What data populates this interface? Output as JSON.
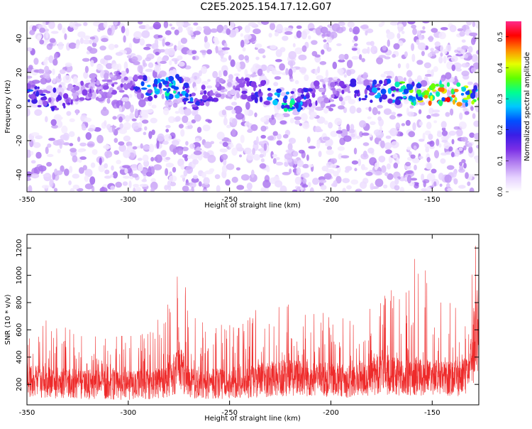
{
  "title": "C2E5.2025.154.17.12.G07",
  "colors": {
    "snr_line": "#ee2a2a",
    "colormap": [
      "#ffffff",
      "#e6d2ff",
      "#b482f0",
      "#7a2ee6",
      "#3a1ee6",
      "#0050ff",
      "#00c8ff",
      "#00ff90",
      "#60ff00",
      "#e6ff00",
      "#ff8800",
      "#ff0000",
      "#ff2a8a"
    ]
  },
  "chart_data": [
    {
      "type": "heatmap",
      "xlabel": "Height of straight line (km)",
      "ylabel": "Frequency (Hz)",
      "xlim": [
        -350,
        -127
      ],
      "ylim": [
        -50,
        50
      ],
      "xticks": [
        -350,
        -300,
        -250,
        -200,
        -150
      ],
      "yticks": [
        -40,
        -20,
        0,
        20,
        40
      ],
      "colorbar": {
        "label": "Normalized spectral amplitude",
        "range": [
          0.0,
          0.55
        ],
        "ticks": [
          0.0,
          0.1,
          0.2,
          0.3,
          0.4,
          0.5
        ],
        "tick_labels": [
          "0.0",
          "0.1",
          "0.2",
          "0.3",
          "0.4",
          "0.5"
        ]
      },
      "ridge": {
        "description_points": [
          {
            "x": -348,
            "freq": 8,
            "amp": 0.22
          },
          {
            "x": -340,
            "freq": 3,
            "amp": 0.18
          },
          {
            "x": -325,
            "freq": 7,
            "amp": 0.12
          },
          {
            "x": -300,
            "freq": 16,
            "amp": 0.12
          },
          {
            "x": -290,
            "freq": 10,
            "amp": 0.28
          },
          {
            "x": -276,
            "freq": 12,
            "amp": 0.3
          },
          {
            "x": -268,
            "freq": 4,
            "amp": 0.22
          },
          {
            "x": -250,
            "freq": 12,
            "amp": 0.08
          },
          {
            "x": -232,
            "freq": 8,
            "amp": 0.22
          },
          {
            "x": -220,
            "freq": 2,
            "amp": 0.32
          },
          {
            "x": -205,
            "freq": 9,
            "amp": 0.1
          },
          {
            "x": -185,
            "freq": 9,
            "amp": 0.2
          },
          {
            "x": -170,
            "freq": 9,
            "amp": 0.3
          },
          {
            "x": -158,
            "freq": 7,
            "amp": 0.38
          },
          {
            "x": -145,
            "freq": 8,
            "amp": 0.5
          },
          {
            "x": -132,
            "freq": 7,
            "amp": 0.38
          }
        ]
      }
    },
    {
      "type": "line",
      "xlabel": "Height of straight line (km)",
      "ylabel": "SNR (10 * v/v)",
      "xlim": [
        -350,
        -127
      ],
      "ylim": [
        50,
        1300
      ],
      "xticks": [
        -350,
        -300,
        -250,
        -200,
        -150
      ],
      "yticks": [
        200,
        400,
        600,
        800,
        1000,
        1200
      ],
      "envelope": {
        "x": [
          -350,
          -340,
          -330,
          -320,
          -310,
          -300,
          -290,
          -280,
          -276,
          -274,
          -272,
          -270,
          -260,
          -250,
          -240,
          -230,
          -220,
          -210,
          -200,
          -190,
          -180,
          -176,
          -170,
          -160,
          -158,
          -150,
          -140,
          -132,
          -129,
          -127
        ],
        "base": [
          230,
          220,
          210,
          200,
          200,
          190,
          200,
          230,
          300,
          320,
          250,
          210,
          200,
          210,
          220,
          240,
          250,
          240,
          230,
          220,
          240,
          300,
          260,
          240,
          260,
          250,
          240,
          260,
          500,
          700
        ],
        "peak": [
          650,
          700,
          620,
          560,
          540,
          600,
          620,
          800,
          1100,
          1250,
          950,
          700,
          700,
          650,
          750,
          760,
          800,
          740,
          720,
          700,
          780,
          950,
          900,
          1000,
          1250,
          900,
          850,
          700,
          1250,
          1300
        ]
      }
    }
  ]
}
